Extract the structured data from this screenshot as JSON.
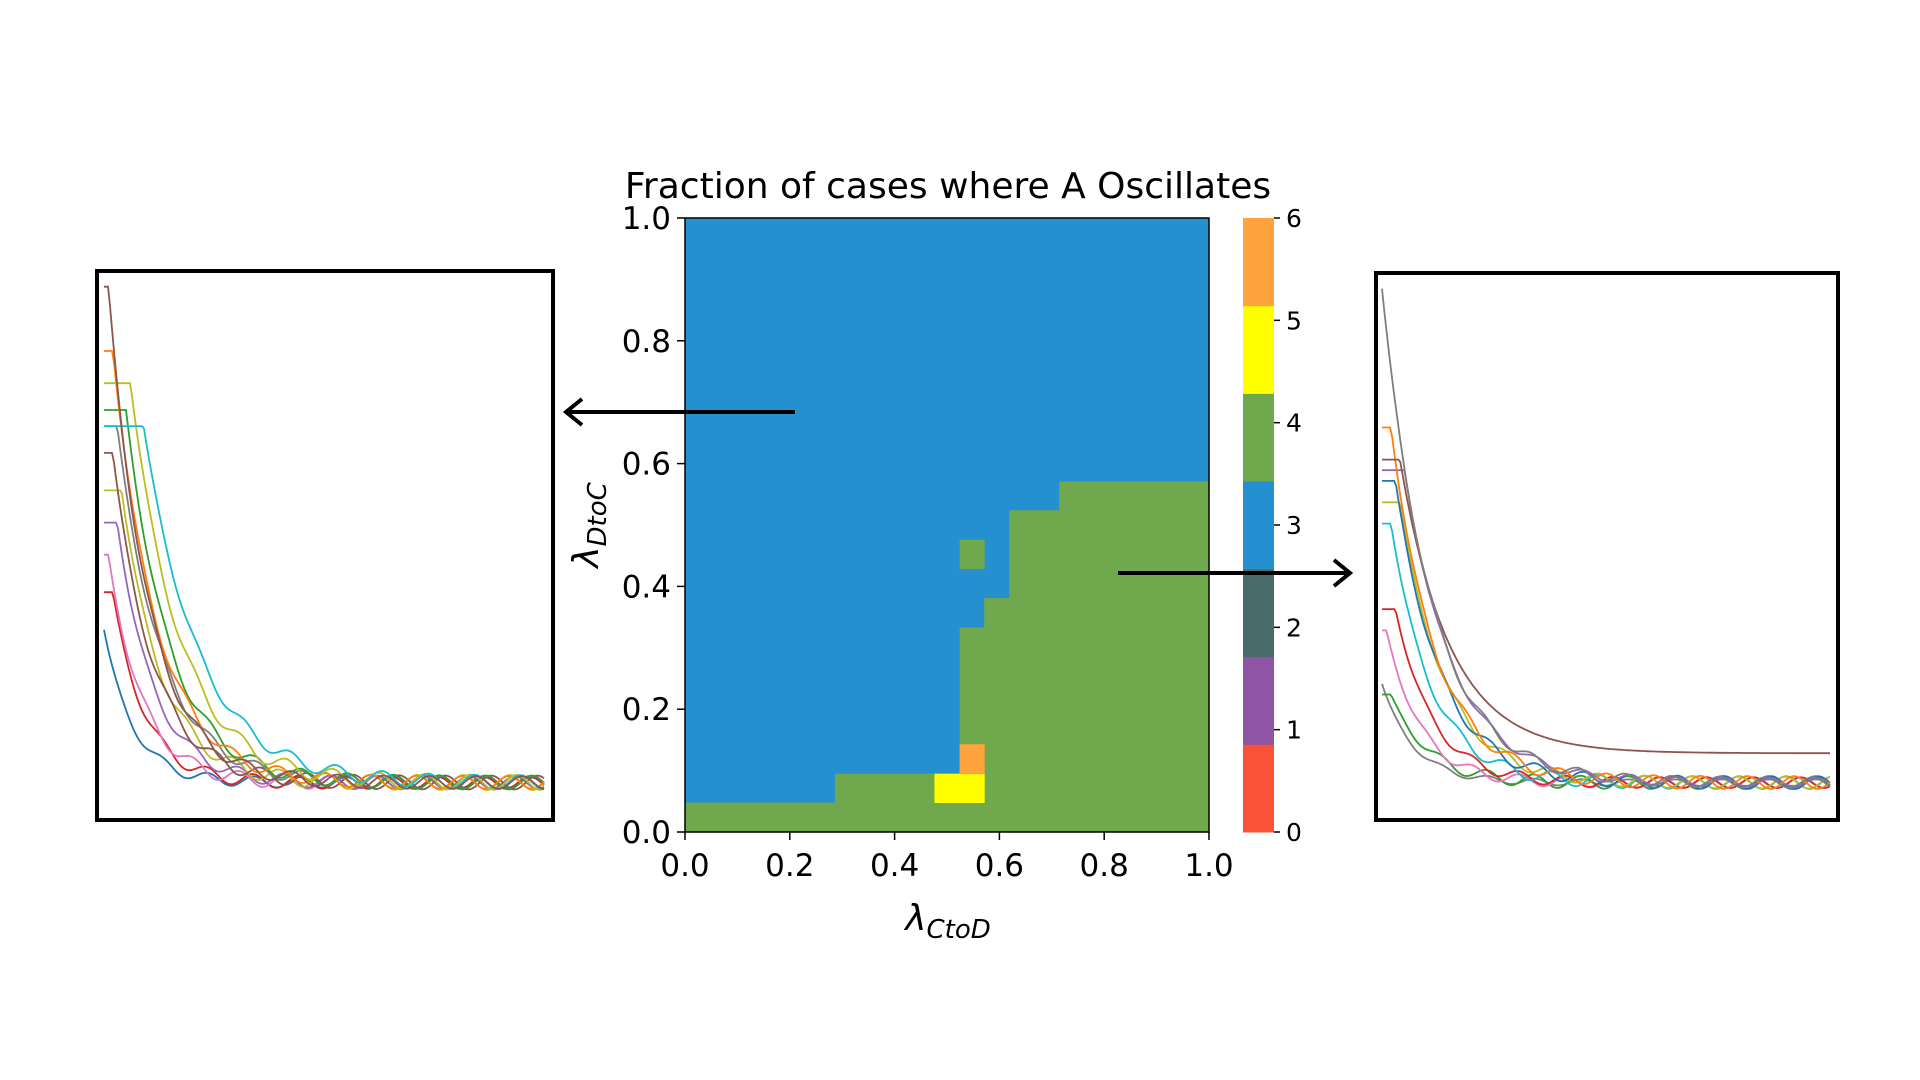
{
  "chart_data": [
    {
      "type": "heatmap",
      "title": "Fraction of cases where A Oscillates",
      "xlabel": "λCtoD",
      "ylabel": "λDtoC",
      "xlabel_parts": {
        "symbol": "λ",
        "subscript": "CtoD"
      },
      "ylabel_parts": {
        "symbol": "λ",
        "subscript": "DtoC"
      },
      "xlim": [
        0,
        1
      ],
      "ylim": [
        0,
        1
      ],
      "xticks": [
        "0.0",
        "0.2",
        "0.4",
        "0.6",
        "0.8",
        "1.0"
      ],
      "yticks": [
        "0.0",
        "0.2",
        "0.4",
        "0.6",
        "0.8",
        "1.0"
      ],
      "grid": false,
      "regions": [
        {
          "value": 3,
          "x0": 0.0,
          "x1": 1.0,
          "y0": 0.0,
          "y1": 1.0
        },
        {
          "value": 4,
          "x0": 0.0,
          "x1": 1.0,
          "y0": 0.0,
          "y1": 0.048
        },
        {
          "value": 4,
          "x0": 0.286,
          "x1": 1.0,
          "y0": 0.048,
          "y1": 0.095
        },
        {
          "value": 4,
          "x0": 0.524,
          "x1": 1.0,
          "y0": 0.095,
          "y1": 0.333
        },
        {
          "value": 4,
          "x0": 0.571,
          "x1": 1.0,
          "y0": 0.333,
          "y1": 0.381
        },
        {
          "value": 4,
          "x0": 0.619,
          "x1": 1.0,
          "y0": 0.381,
          "y1": 0.524
        },
        {
          "value": 4,
          "x0": 0.714,
          "x1": 1.0,
          "y0": 0.524,
          "y1": 0.571
        },
        {
          "value": 4,
          "x0": 0.524,
          "x1": 0.571,
          "y0": 0.429,
          "y1": 0.476
        },
        {
          "value": 5,
          "x0": 0.476,
          "x1": 0.571,
          "y0": 0.048,
          "y1": 0.095
        },
        {
          "value": 6,
          "x0": 0.524,
          "x1": 0.571,
          "y0": 0.095,
          "y1": 0.143
        }
      ],
      "colorbar": {
        "min": 0,
        "max": 6,
        "ticks": [
          "0",
          "1",
          "2",
          "3",
          "4",
          "5",
          "6"
        ],
        "levels": [
          {
            "from": 0,
            "to": 0.857,
            "color": "#f95237"
          },
          {
            "from": 0.857,
            "to": 1.714,
            "color": "#8e55a4"
          },
          {
            "from": 1.714,
            "to": 2.571,
            "color": "#4a6b6b"
          },
          {
            "from": 2.571,
            "to": 3.429,
            "color": "#2490d0"
          },
          {
            "from": 3.429,
            "to": 4.286,
            "color": "#6fa84d"
          },
          {
            "from": 4.286,
            "to": 5.143,
            "color": "#ffff00"
          },
          {
            "from": 5.143,
            "to": 6.0,
            "color": "#ffa33c"
          }
        ]
      },
      "value_colors": {
        "3": "#2490d0",
        "4": "#6fa84d",
        "5": "#ffff00",
        "6": "#ffa33c"
      }
    },
    {
      "type": "line",
      "panel": "left-inset",
      "description_axes": "none",
      "xlim": [
        0,
        1
      ],
      "ylim": [
        0,
        1
      ],
      "series": [
        {
          "color": "#1f77b4",
          "start": 0.34,
          "decay": 15,
          "delay": 0.0,
          "amp": 0.01
        },
        {
          "color": "#d62728",
          "start": 0.41,
          "decay": 14,
          "delay": 0.02,
          "amp": 0.012
        },
        {
          "color": "#e377c2",
          "start": 0.48,
          "decay": 13,
          "delay": 0.01,
          "amp": 0.013
        },
        {
          "color": "#9467bd",
          "start": 0.54,
          "decay": 12,
          "delay": 0.03,
          "amp": 0.012
        },
        {
          "color": "#bcbd22",
          "start": 0.6,
          "decay": 11,
          "delay": 0.04,
          "amp": 0.014
        },
        {
          "color": "#8c564b",
          "start": 0.67,
          "decay": 11,
          "delay": 0.02,
          "amp": 0.013
        },
        {
          "color": "#7f7f7f",
          "start": 0.72,
          "decay": 10,
          "delay": 0.03,
          "amp": 0.012
        },
        {
          "color": "#2ca02c",
          "start": 0.75,
          "decay": 10,
          "delay": 0.05,
          "amp": 0.013
        },
        {
          "color": "#ff7f0e",
          "start": 0.86,
          "decay": 10,
          "delay": 0.02,
          "amp": 0.012
        },
        {
          "color": "#bcbd22",
          "start": 0.8,
          "decay": 9,
          "delay": 0.06,
          "amp": 0.014
        },
        {
          "color": "#17becf",
          "start": 0.72,
          "decay": 8,
          "delay": 0.09,
          "amp": 0.013
        },
        {
          "color": "#8c564b",
          "start": 0.98,
          "decay": 11,
          "delay": 0.01,
          "amp": 0.012
        }
      ]
    },
    {
      "type": "line",
      "panel": "right-inset",
      "xlim": [
        0,
        1
      ],
      "ylim": [
        0,
        1
      ],
      "series": [
        {
          "color": "#7f7f7f",
          "start": 0.24,
          "decay": 14,
          "delay": 0.0,
          "amp": 0.006
        },
        {
          "color": "#2ca02c",
          "start": 0.22,
          "decay": 12,
          "delay": 0.02,
          "amp": 0.012
        },
        {
          "color": "#e377c2",
          "start": 0.34,
          "decay": 13,
          "delay": 0.01,
          "amp": 0.01
        },
        {
          "color": "#d62728",
          "start": 0.38,
          "decay": 12,
          "delay": 0.03,
          "amp": 0.01
        },
        {
          "color": "#17becf",
          "start": 0.54,
          "decay": 11,
          "delay": 0.02,
          "amp": 0.012
        },
        {
          "color": "#bcbd22",
          "start": 0.58,
          "decay": 10,
          "delay": 0.04,
          "amp": 0.011
        },
        {
          "color": "#1f77b4",
          "start": 0.62,
          "decay": 10,
          "delay": 0.03,
          "amp": 0.012
        },
        {
          "color": "#9467bd",
          "start": 0.64,
          "decay": 9,
          "delay": 0.05,
          "amp": 0.008
        },
        {
          "color": "#ff7f0e",
          "start": 0.72,
          "decay": 10,
          "delay": 0.02,
          "amp": 0.012
        },
        {
          "color": "#8c564b",
          "start": 0.66,
          "decay": 9,
          "delay": 0.04,
          "amp": 0.0,
          "floor": 0.11
        },
        {
          "color": "#7f7f7f",
          "start": 0.98,
          "decay": 9,
          "delay": 0.0,
          "amp": 0.01
        }
      ]
    }
  ]
}
